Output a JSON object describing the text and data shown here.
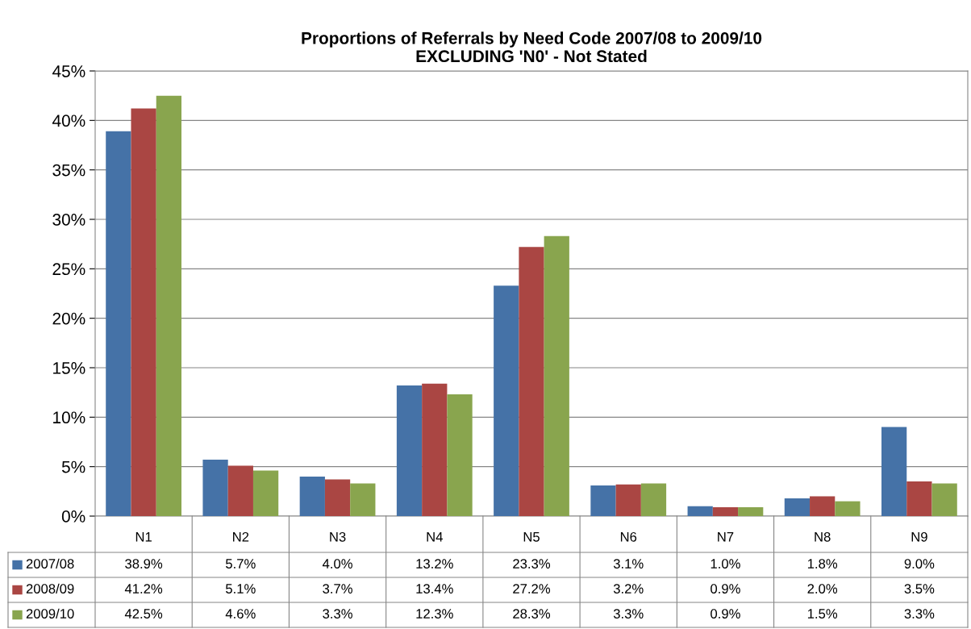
{
  "chart_data": {
    "type": "bar",
    "title": "Proportions of Referrals by Need Code 2007/08 to 2009/10\nEXCLUDING 'N0' - Not Stated",
    "categories": [
      "N1",
      "N2",
      "N3",
      "N4",
      "N5",
      "N6",
      "N7",
      "N8",
      "N9"
    ],
    "series": [
      {
        "name": "2007/08",
        "color": "#4572a7",
        "values": [
          38.9,
          5.7,
          4.0,
          13.2,
          23.3,
          3.1,
          1.0,
          1.8,
          9.0
        ],
        "value_labels": [
          "38.9%",
          "5.7%",
          "4.0%",
          "13.2%",
          "23.3%",
          "3.1%",
          "1.0%",
          "1.8%",
          "9.0%"
        ]
      },
      {
        "name": "2008/09",
        "color": "#aa4643",
        "values": [
          41.2,
          5.1,
          3.7,
          13.4,
          27.2,
          3.2,
          0.9,
          2.0,
          3.5
        ],
        "value_labels": [
          "41.2%",
          "5.1%",
          "3.7%",
          "13.4%",
          "27.2%",
          "3.2%",
          "0.9%",
          "2.0%",
          "3.5%"
        ]
      },
      {
        "name": "2009/10",
        "color": "#89a54e",
        "values": [
          42.5,
          4.6,
          3.3,
          12.3,
          28.3,
          3.3,
          0.9,
          1.5,
          3.3
        ],
        "value_labels": [
          "42.5%",
          "4.6%",
          "3.3%",
          "12.3%",
          "28.3%",
          "3.3%",
          "0.9%",
          "1.5%",
          "3.3%"
        ]
      }
    ],
    "ylim": [
      0,
      45
    ],
    "yticks": [
      {
        "value": 0,
        "label": "0%"
      },
      {
        "value": 5,
        "label": "5%"
      },
      {
        "value": 10,
        "label": "10%"
      },
      {
        "value": 15,
        "label": "15%"
      },
      {
        "value": 20,
        "label": "20%"
      },
      {
        "value": 25,
        "label": "25%"
      },
      {
        "value": 30,
        "label": "30%"
      },
      {
        "value": 35,
        "label": "35%"
      },
      {
        "value": 40,
        "label": "40%"
      },
      {
        "value": 45,
        "label": "45%"
      }
    ],
    "grid": "y",
    "legend": "bottom"
  }
}
